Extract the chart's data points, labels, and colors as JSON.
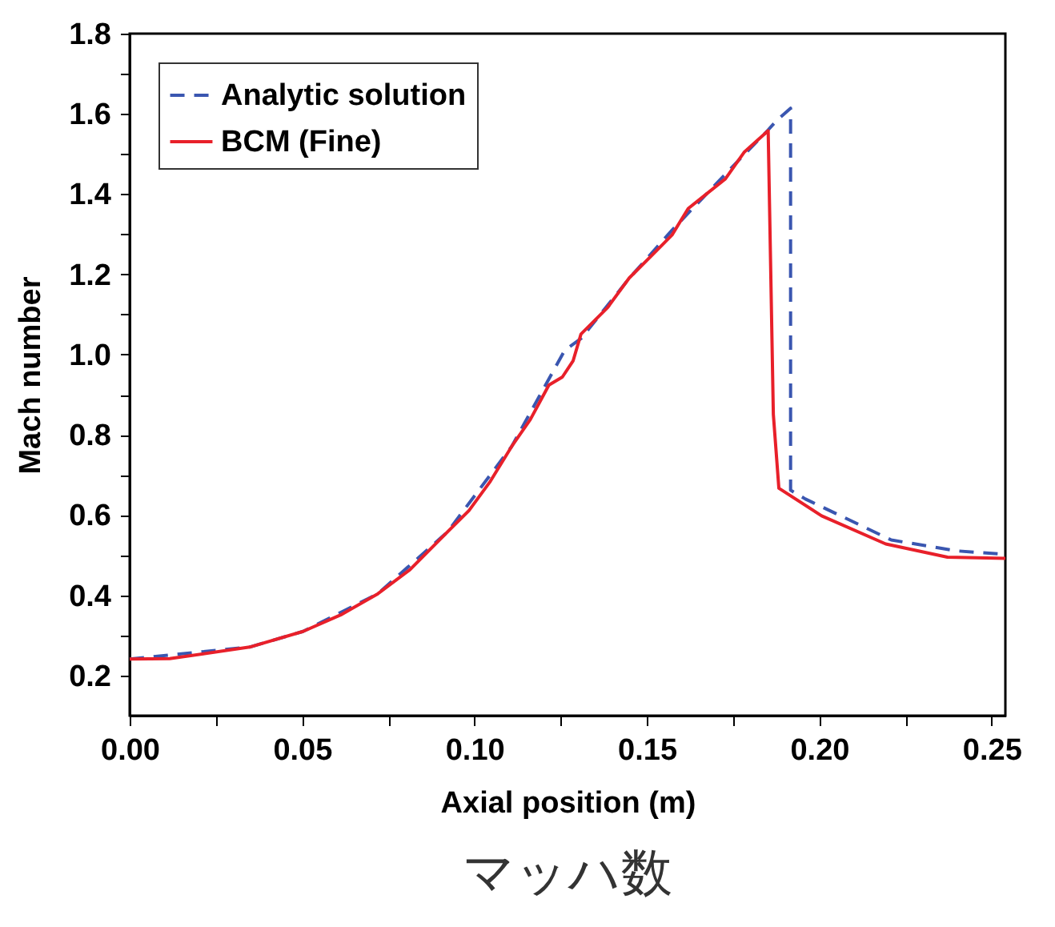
{
  "chart_data": {
    "type": "line",
    "xlabel": "Axial position (m)",
    "ylabel": "Mach number",
    "annotations": [
      "マッハ数"
    ],
    "xlim": [
      0,
      0.254
    ],
    "ylim": [
      0.1,
      1.8
    ],
    "xticks": [
      {
        "value": 0,
        "label": "0.00"
      },
      {
        "value": 0.025,
        "label": null
      },
      {
        "value": 0.05,
        "label": "0.05"
      },
      {
        "value": 0.075,
        "label": null
      },
      {
        "value": 0.1,
        "label": "0.10"
      },
      {
        "value": 0.125,
        "label": null
      },
      {
        "value": 0.15,
        "label": "0.15"
      },
      {
        "value": 0.175,
        "label": null
      },
      {
        "value": 0.2,
        "label": "0.20"
      },
      {
        "value": 0.225,
        "label": null
      },
      {
        "value": 0.25,
        "label": "0.25"
      }
    ],
    "yticks": [
      {
        "value": 0.2,
        "label": "0.2"
      },
      {
        "value": 0.3,
        "label": null
      },
      {
        "value": 0.4,
        "label": "0.4"
      },
      {
        "value": 0.5,
        "label": null
      },
      {
        "value": 0.6,
        "label": "0.6"
      },
      {
        "value": 0.7,
        "label": null
      },
      {
        "value": 0.8,
        "label": "0.8"
      },
      {
        "value": 0.9,
        "label": null
      },
      {
        "value": 1.0,
        "label": "1.0"
      },
      {
        "value": 1.1,
        "label": null
      },
      {
        "value": 1.2,
        "label": "1.2"
      },
      {
        "value": 1.3,
        "label": null
      },
      {
        "value": 1.4,
        "label": "1.4"
      },
      {
        "value": 1.5,
        "label": null
      },
      {
        "value": 1.6,
        "label": "1.6"
      },
      {
        "value": 1.7,
        "label": null
      },
      {
        "value": 1.8,
        "label": "1.8"
      }
    ],
    "grid": false,
    "legend": "top left",
    "marker": "none",
    "series": [
      {
        "name": "Analytic solution",
        "color": "#3a56b0",
        "line_style": "dashed",
        "x": [
          0,
          0.0348,
          0.0503,
          0.072,
          0.0922,
          0.1108,
          0.1262,
          0.1309,
          0.1449,
          0.1573,
          0.1728,
          0.1852,
          0.1875,
          0.1917,
          0.1917,
          0.196,
          0.2209,
          0.2395,
          0.254
        ],
        "values": [
          0.241,
          0.271,
          0.31,
          0.404,
          0.558,
          0.771,
          1.011,
          1.04,
          1.19,
          1.31,
          1.45,
          1.56,
          1.582,
          1.614,
          0.662,
          0.64,
          0.538,
          0.511,
          0.502
        ]
      },
      {
        "name": "BCM (Fine)",
        "color": "#e8202a",
        "line_style": "solid",
        "x": [
          0,
          0.0116,
          0.0348,
          0.0503,
          0.0612,
          0.072,
          0.0813,
          0.0922,
          0.0984,
          0.1046,
          0.1108,
          0.1162,
          0.1216,
          0.1255,
          0.1286,
          0.1309,
          0.1387,
          0.1449,
          0.1527,
          0.1573,
          0.162,
          0.1728,
          0.1782,
          0.1852,
          0.1867,
          0.1883,
          0.2007,
          0.2193,
          0.2372,
          0.254
        ],
        "values": [
          0.241,
          0.242,
          0.271,
          0.31,
          0.351,
          0.404,
          0.464,
          0.558,
          0.611,
          0.684,
          0.771,
          0.838,
          0.924,
          0.944,
          0.984,
          1.051,
          1.118,
          1.191,
          1.258,
          1.298,
          1.364,
          1.438,
          1.504,
          1.558,
          0.851,
          0.667,
          0.598,
          0.528,
          0.495,
          0.492
        ]
      }
    ]
  }
}
